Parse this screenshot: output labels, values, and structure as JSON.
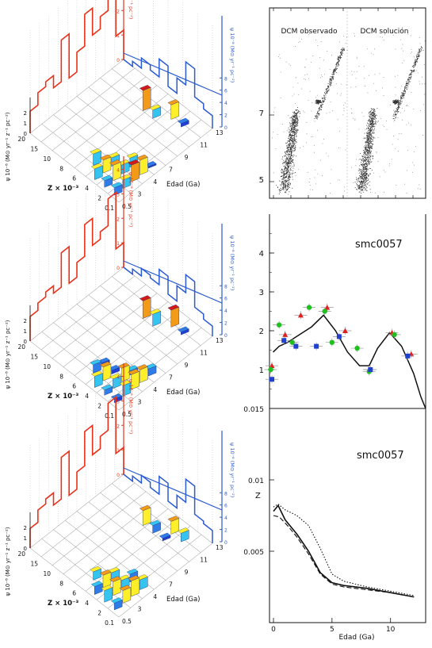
{
  "colors": {
    "obs_sfh": "#e8321a",
    "sol_sfh": "#2a5bd0",
    "axis": "#111111",
    "cmd_points": "#333333",
    "marker_red": "#e02020",
    "marker_green": "#20c020",
    "marker_blue": "#2040d0",
    "bar_palette": [
      "#1f3fd6",
      "#2f7be8",
      "#35c3f0",
      "#ffef2a",
      "#f39a18",
      "#d21a1a"
    ]
  },
  "panels3d": [
    {
      "zlabel": "Z × 10⁻³",
      "xlabel": "Edad (Ga)",
      "psi_label": "ψ 10⁻⁸ (M⊙ yr⁻¹ z⁻¹ pc⁻²)",
      "obs_label": "ψ 10⁻⁸ (M⊙ yr⁻¹ pc⁻²)",
      "sol_label": "ψ 10⁻⁸ (M⊙ yr⁻¹ pc⁻²)",
      "z_ticks": [
        "20",
        "15",
        "10",
        "8",
        "6",
        "4",
        "2",
        "0.1"
      ],
      "age_ticks": [
        "0.5",
        "3",
        "4",
        "7",
        "9",
        "11",
        "13"
      ],
      "psi_ticks": [
        "0",
        "1",
        "2"
      ],
      "obs_ticks": [
        "0",
        "1",
        "2",
        "3",
        "4"
      ],
      "sol_ticks": [
        "0",
        "2",
        "4",
        "6",
        "8"
      ],
      "obs_sfh": [
        0.9,
        1.4,
        1.6,
        1.1,
        2.8,
        1.0,
        1.8,
        3.1,
        2.0,
        2.5,
        3.6,
        1.2
      ],
      "sol_sfh": [
        0.0,
        0.2,
        0.6,
        0.4,
        1.1,
        0.3,
        0.9,
        1.8,
        0.7,
        0.5
      ]
    },
    {
      "zlabel": "Z × 10⁻³",
      "xlabel": "Edad (Ga)",
      "psi_label": "ψ 10⁻⁸ (M⊙ yr⁻¹ z⁻¹ pc⁻²)",
      "obs_label": "ψ 10⁻⁸ (M⊙ yr⁻¹ pc⁻²)",
      "sol_label": "ψ 10⁻⁸ (M⊙ yr⁻¹ pc⁻²)",
      "z_ticks": [
        "20",
        "15",
        "10",
        "8",
        "6",
        "4",
        "2",
        "0.1"
      ],
      "age_ticks": [
        "0.5",
        "3",
        "4",
        "7",
        "9",
        "11",
        "13"
      ],
      "psi_ticks": [
        "0",
        "1",
        "2"
      ],
      "obs_ticks": [
        "0",
        "1",
        "2",
        "3",
        "4"
      ],
      "sol_ticks": [
        "0",
        "2",
        "4",
        "6",
        "8"
      ],
      "obs_sfh": [
        1.0,
        1.3,
        1.5,
        1.2,
        2.6,
        1.1,
        1.7,
        3.0,
        1.9,
        2.2,
        3.3,
        1.0
      ],
      "sol_sfh": [
        0.0,
        0.2,
        0.5,
        0.4,
        1.0,
        0.3,
        0.9,
        1.6,
        0.6,
        0.4
      ]
    },
    {
      "zlabel": "Z × 10⁻³",
      "xlabel": "Edad (Ga)",
      "psi_label": "ψ 10⁻⁸ (M⊙ yr⁻¹ z⁻¹ pc⁻²)",
      "obs_label": "ψ 10⁻⁸ (M⊙ yr⁻¹ pc⁻²)",
      "sol_label": "ψ 10⁻⁸ (M⊙ yr⁻¹ pc⁻²)",
      "z_ticks": [
        "20",
        "15",
        "10",
        "8",
        "6",
        "4",
        "2",
        "0.1"
      ],
      "age_ticks": [
        "0.5",
        "3",
        "4",
        "7",
        "9",
        "11",
        "13"
      ],
      "psi_ticks": [
        "0",
        "1",
        "2"
      ],
      "obs_ticks": [
        "0",
        "1",
        "2",
        "3",
        "4"
      ],
      "sol_ticks": [
        "0",
        "2",
        "4",
        "6",
        "8"
      ],
      "obs_sfh": [
        0.8,
        1.3,
        1.5,
        1.0,
        2.7,
        0.9,
        1.6,
        3.0,
        1.8,
        2.3,
        3.4,
        1.1
      ],
      "sol_sfh": [
        0.0,
        0.2,
        0.5,
        0.3,
        1.0,
        0.3,
        0.8,
        1.7,
        0.6,
        0.5
      ]
    }
  ],
  "chart_data": [
    {
      "type": "scatter",
      "title": "",
      "annotations": [
        "DCM observado",
        "DCM solución"
      ],
      "yticks": [
        "7",
        "5"
      ],
      "xlabel": "",
      "ylabel": ""
    },
    {
      "type": "line",
      "title": "smc0057",
      "xlim": [
        0,
        13
      ],
      "ylim": [
        0,
        5
      ],
      "yticks": [
        "1",
        "2",
        "3",
        "4"
      ],
      "series": [
        {
          "x": [
            0.3,
            0.8,
            1.5,
            2.5,
            3.5,
            4.5,
            5.5,
            6.5,
            7.5,
            8.3,
            9.0,
            10.0,
            11.0,
            12.0,
            12.6,
            13.0
          ],
          "y": [
            1.45,
            1.6,
            1.7,
            1.9,
            2.1,
            2.4,
            2.0,
            1.45,
            1.1,
            1.1,
            1.55,
            1.95,
            1.6,
            0.9,
            0.3,
            0.0
          ]
        }
      ],
      "markers": {
        "red": [
          [
            0.2,
            1.1
          ],
          [
            1.3,
            1.9
          ],
          [
            2.6,
            2.4
          ],
          [
            4.8,
            2.6
          ],
          [
            6.3,
            2.0
          ],
          [
            8.3,
            1.0
          ],
          [
            10.2,
            1.95
          ],
          [
            11.8,
            1.4
          ]
        ],
        "green": [
          [
            0.1,
            1.0
          ],
          [
            0.8,
            2.15
          ],
          [
            1.9,
            1.7
          ],
          [
            3.3,
            2.6
          ],
          [
            4.6,
            2.5
          ],
          [
            5.2,
            1.7
          ],
          [
            7.3,
            1.55
          ],
          [
            8.3,
            0.95
          ],
          [
            10.4,
            1.9
          ]
        ],
        "blue": [
          [
            0.2,
            0.75
          ],
          [
            1.2,
            1.75
          ],
          [
            2.2,
            1.6
          ],
          [
            3.9,
            1.6
          ],
          [
            5.8,
            1.85
          ],
          [
            8.4,
            1.0
          ],
          [
            11.5,
            1.35
          ]
        ]
      }
    },
    {
      "type": "line",
      "title": "smc0057",
      "xlabel": "Edad (Ga)",
      "ylabel": "Z",
      "xlim": [
        0,
        13
      ],
      "ylim": [
        0,
        0.015
      ],
      "xticks": [
        "0",
        "5",
        "10"
      ],
      "yticks": [
        "0.015",
        "0.01",
        "0.005"
      ],
      "series": [
        {
          "style": "solid",
          "x": [
            0.0,
            0.4,
            1.0,
            2.0,
            3.0,
            4.0,
            5.0,
            6.0,
            8.0,
            10.0,
            12.0
          ],
          "y": [
            0.0078,
            0.0082,
            0.0072,
            0.0062,
            0.005,
            0.0035,
            0.0028,
            0.0026,
            0.0024,
            0.0021,
            0.0018
          ]
        },
        {
          "style": "dashed",
          "x": [
            0.0,
            0.5,
            1.2,
            2.0,
            3.0,
            4.0,
            5.0,
            6.0,
            8.0,
            10.0,
            12.0
          ],
          "y": [
            0.0075,
            0.0074,
            0.0068,
            0.006,
            0.0048,
            0.0034,
            0.0027,
            0.0025,
            0.0023,
            0.0021,
            0.0018
          ]
        },
        {
          "style": "dotted",
          "x": [
            0.0,
            0.4,
            1.0,
            2.0,
            3.0,
            4.0,
            5.0,
            6.0,
            8.0,
            10.0,
            12.0
          ],
          "y": [
            0.0081,
            0.0083,
            0.0079,
            0.0075,
            0.0068,
            0.0052,
            0.0034,
            0.0029,
            0.0025,
            0.0022,
            0.0019
          ]
        }
      ]
    }
  ]
}
